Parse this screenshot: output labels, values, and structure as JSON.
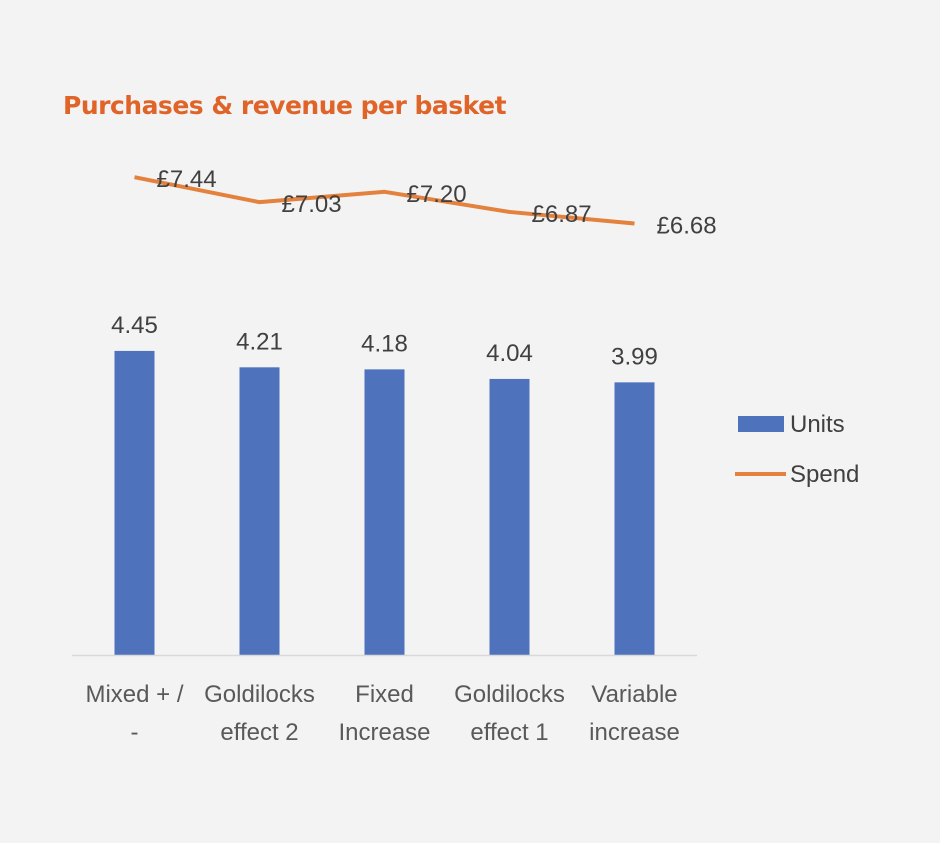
{
  "chart_data": {
    "type": "bar",
    "title": "Purchases & revenue per basket",
    "categories": [
      [
        "Mixed + /",
        "-"
      ],
      [
        "Goldilocks",
        "effect 2"
      ],
      [
        "Fixed",
        "Increase"
      ],
      [
        "Goldilocks",
        "effect 1"
      ],
      [
        "Variable",
        "increase"
      ]
    ],
    "series": [
      {
        "name": "Units",
        "type": "bar",
        "values": [
          4.45,
          4.21,
          4.18,
          4.04,
          3.99
        ],
        "labels": [
          "4.45",
          "4.21",
          "4.18",
          "4.04",
          "3.99"
        ],
        "color": "#4f72bd",
        "ylim": [
          0,
          6
        ]
      },
      {
        "name": "Spend",
        "type": "line",
        "values": [
          7.44,
          7.03,
          7.2,
          6.87,
          6.68
        ],
        "labels": [
          "£7.44",
          "£7.03",
          "£7.20",
          "£6.87",
          "£6.68"
        ],
        "color": "#e3813d",
        "ylim": [
          0,
          8
        ]
      }
    ],
    "legend_position": "right",
    "grid": false,
    "colors": {
      "title": "#e06327",
      "axis": "#d9d9d9",
      "background": "#f3f3f3"
    }
  }
}
